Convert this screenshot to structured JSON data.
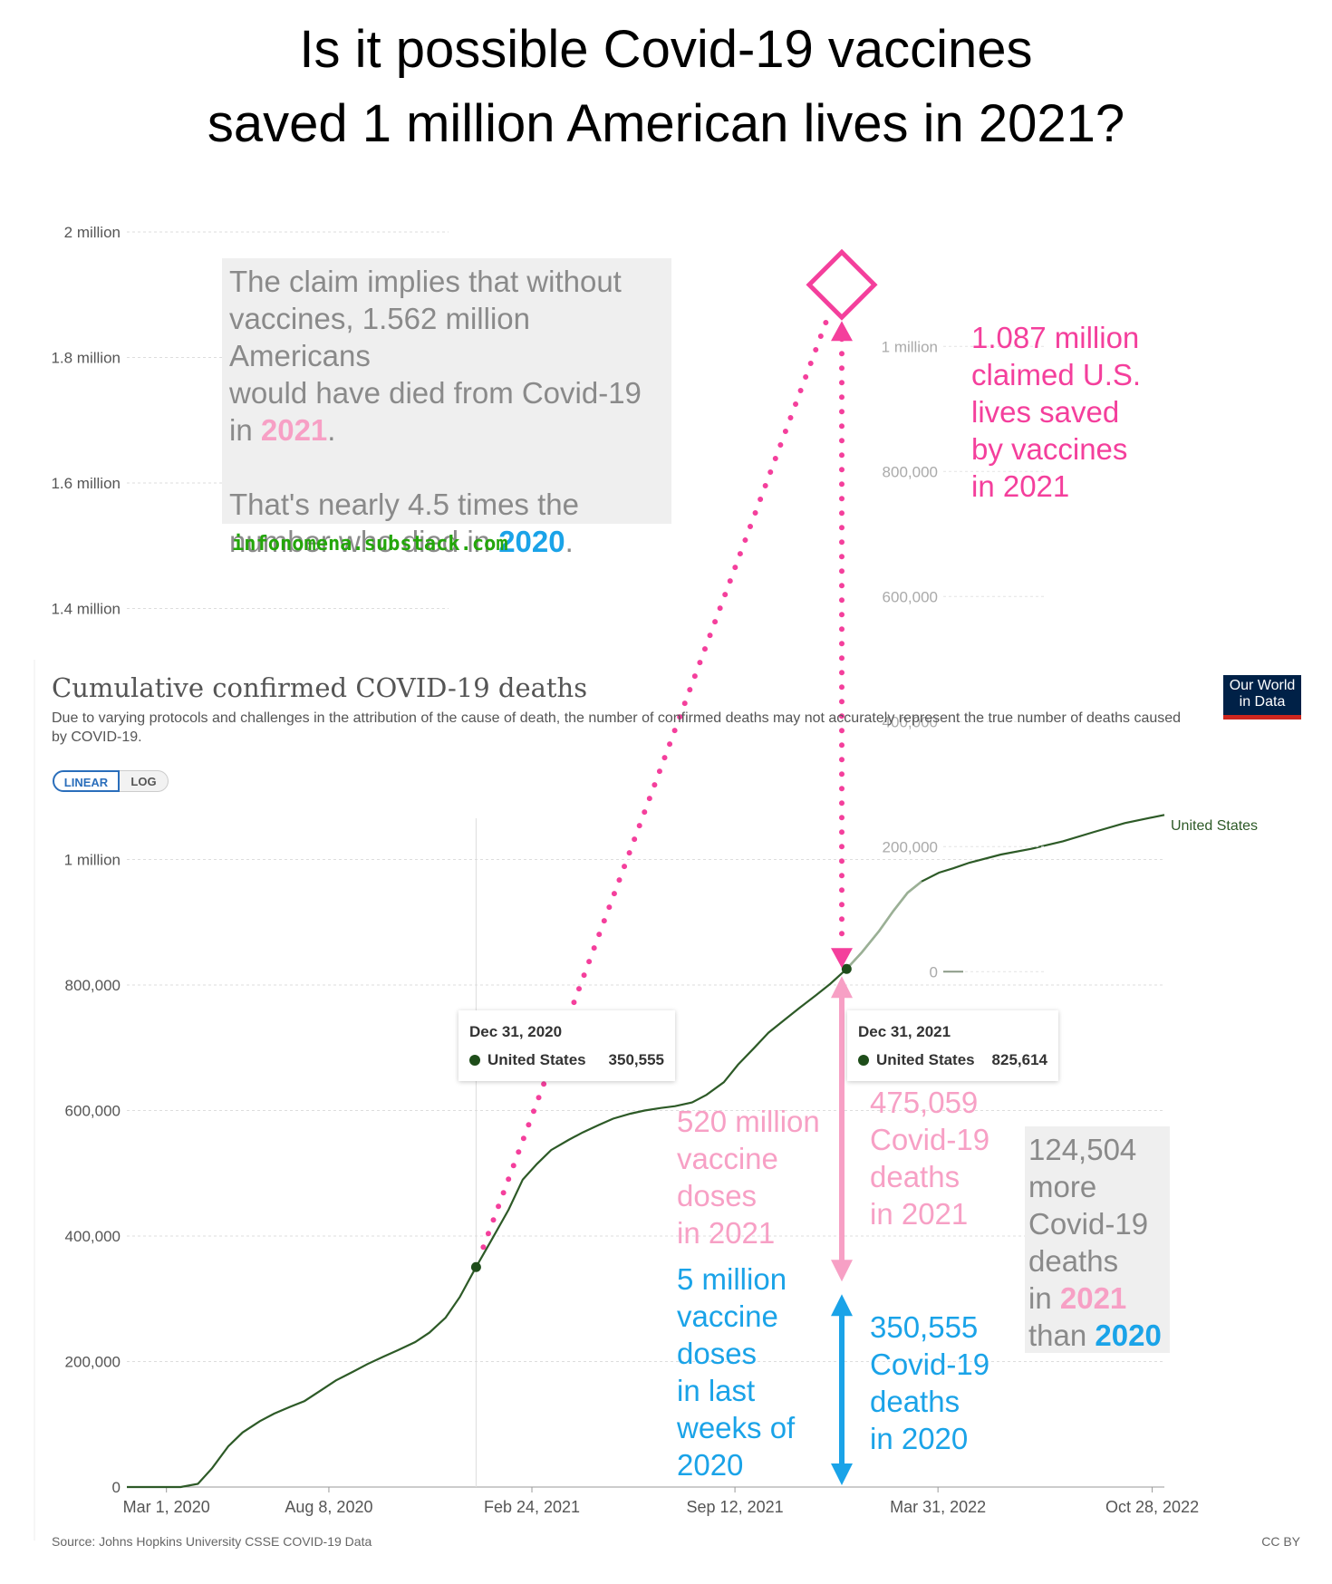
{
  "headline": {
    "line1": "Is it possible Covid-19 vaccines",
    "line2": "saved 1 million American lives in 2021?"
  },
  "claim_box": {
    "lines": [
      "The claim implies that without",
      "vaccines, 1.562 million Americans",
      "would have died from Covid-19"
    ],
    "line4_pre": "in ",
    "line4_year": "2021",
    "line4_post": ".",
    "line5": "That's nearly 4.5 times the",
    "line6_pre": "number who died in ",
    "line6_year": "2020",
    "line6_post": "."
  },
  "credit": "infonomena.substack.com",
  "saved_annotation": [
    "1.087 million",
    "claimed U.S.",
    "lives saved",
    "by vaccines",
    "in 2021"
  ],
  "doses_2021": [
    "520 million",
    "vaccine",
    "doses",
    "in 2021"
  ],
  "doses_2020": [
    "5 million",
    "vaccine",
    "doses",
    "in last",
    "weeks of",
    "2020"
  ],
  "deaths_2021": [
    "475,059",
    "Covid-19",
    "deaths",
    "in 2021"
  ],
  "deaths_2020": [
    "350,555",
    "Covid-19",
    "deaths",
    "in 2020"
  ],
  "difference_box": {
    "lines": [
      "124,504",
      "more",
      "Covid-19",
      "deaths"
    ],
    "line5_pre": "in ",
    "line5_year": "2021",
    "line6_pre": "than ",
    "line6_year": "2020"
  },
  "owid": {
    "title": "Cumulative confirmed COVID-19 deaths",
    "subtitle": "Due to varying protocols and challenges in the attribution of the cause of death, the number of confirmed deaths may not accurately represent the true number of deaths caused by COVID-19.",
    "toggle_linear": "LINEAR",
    "toggle_log": "LOG",
    "logo_line1": "Our World",
    "logo_line2": "in Data",
    "source": "Source: Johns Hopkins University CSSE COVID-19 Data",
    "license": "CC BY",
    "series_label": "United States"
  },
  "tooltip_2020": {
    "date": "Dec 31, 2020",
    "country": "United States",
    "value": "350,555"
  },
  "tooltip_2021": {
    "date": "Dec 31, 2021",
    "country": "United States",
    "value": "825,614"
  },
  "colors": {
    "line": "#2d5a27",
    "pink_strong": "#f43f9c",
    "pink_light": "#f7a0c5",
    "blue": "#1aa3e8",
    "credit_green": "#24a60a",
    "logo_navy": "#002147",
    "logo_red": "#ce261e"
  },
  "chart_data": [
    {
      "type": "line",
      "title": "Cumulative confirmed COVID-19 deaths",
      "series": [
        {
          "name": "United States",
          "points": [
            [
              "2020-01-22",
              0
            ],
            [
              "2020-03-01",
              1
            ],
            [
              "2020-03-15",
              70
            ],
            [
              "2020-04-01",
              5000
            ],
            [
              "2020-04-15",
              30000
            ],
            [
              "2020-05-01",
              65000
            ],
            [
              "2020-05-15",
              87000
            ],
            [
              "2020-06-01",
              105000
            ],
            [
              "2020-06-15",
              117000
            ],
            [
              "2020-07-01",
              128000
            ],
            [
              "2020-07-15",
              137000
            ],
            [
              "2020-08-01",
              155000
            ],
            [
              "2020-08-15",
              170000
            ],
            [
              "2020-09-01",
              184000
            ],
            [
              "2020-09-15",
              196000
            ],
            [
              "2020-10-01",
              208000
            ],
            [
              "2020-10-15",
              218000
            ],
            [
              "2020-11-01",
              231000
            ],
            [
              "2020-11-15",
              246000
            ],
            [
              "2020-12-01",
              270000
            ],
            [
              "2020-12-15",
              303000
            ],
            [
              "2020-12-31",
              350555
            ],
            [
              "2021-01-15",
              393000
            ],
            [
              "2021-02-01",
              442000
            ],
            [
              "2021-02-15",
              490000
            ],
            [
              "2021-03-01",
              515000
            ],
            [
              "2021-03-15",
              537000
            ],
            [
              "2021-04-01",
              553000
            ],
            [
              "2021-04-15",
              565000
            ],
            [
              "2021-05-01",
              577000
            ],
            [
              "2021-05-15",
              587000
            ],
            [
              "2021-06-01",
              595000
            ],
            [
              "2021-06-15",
              600000
            ],
            [
              "2021-07-01",
              604000
            ],
            [
              "2021-07-15",
              607000
            ],
            [
              "2021-08-01",
              613000
            ],
            [
              "2021-08-15",
              625000
            ],
            [
              "2021-09-01",
              645000
            ],
            [
              "2021-09-15",
              673000
            ],
            [
              "2021-10-01",
              700000
            ],
            [
              "2021-10-15",
              724000
            ],
            [
              "2021-11-01",
              746000
            ],
            [
              "2021-11-15",
              764000
            ],
            [
              "2021-12-01",
              784000
            ],
            [
              "2021-12-15",
              802000
            ],
            [
              "2021-12-31",
              825614
            ],
            [
              "2022-01-15",
              852000
            ],
            [
              "2022-02-01",
              886000
            ],
            [
              "2022-02-15",
              918000
            ],
            [
              "2022-03-01",
              947000
            ],
            [
              "2022-03-15",
              965000
            ],
            [
              "2022-04-01",
              979000
            ],
            [
              "2022-04-15",
              986000
            ],
            [
              "2022-05-01",
              995000
            ],
            [
              "2022-06-01",
              1008000
            ],
            [
              "2022-07-01",
              1017000
            ],
            [
              "2022-08-01",
              1029000
            ],
            [
              "2022-09-01",
              1044000
            ],
            [
              "2022-10-01",
              1058000
            ],
            [
              "2022-11-09",
              1071000
            ]
          ]
        }
      ],
      "x_ticks": [
        "Mar 1, 2020",
        "Aug 8, 2020",
        "Feb 24, 2021",
        "Sep 12, 2021",
        "Mar 31, 2022",
        "Oct 28, 2022"
      ],
      "y_ticks": [
        "0",
        "200,000",
        "400,000",
        "600,000",
        "800,000",
        "1 million"
      ],
      "ylim": [
        0,
        1070000
      ]
    },
    {
      "type": "line",
      "title": "",
      "y_ticks_extended": [
        "1.4 million",
        "1.6 million",
        "1.8 million",
        "2 million"
      ],
      "y_ticks_overlay": [
        "0",
        "200,000",
        "400,000",
        "600,000",
        "800,000",
        "1 million"
      ],
      "markers": [
        {
          "label": "without vaccines (claimed)",
          "year": "2021",
          "value": 1562000
        },
        {
          "label": "Dec 31, 2020",
          "value": 350555
        },
        {
          "label": "Dec 31, 2021",
          "value": 825614
        }
      ],
      "annotations": {
        "claimed_lives_saved": 1087000,
        "deaths_2021": 475059,
        "deaths_2020": 350555,
        "difference": 124504
      }
    }
  ]
}
